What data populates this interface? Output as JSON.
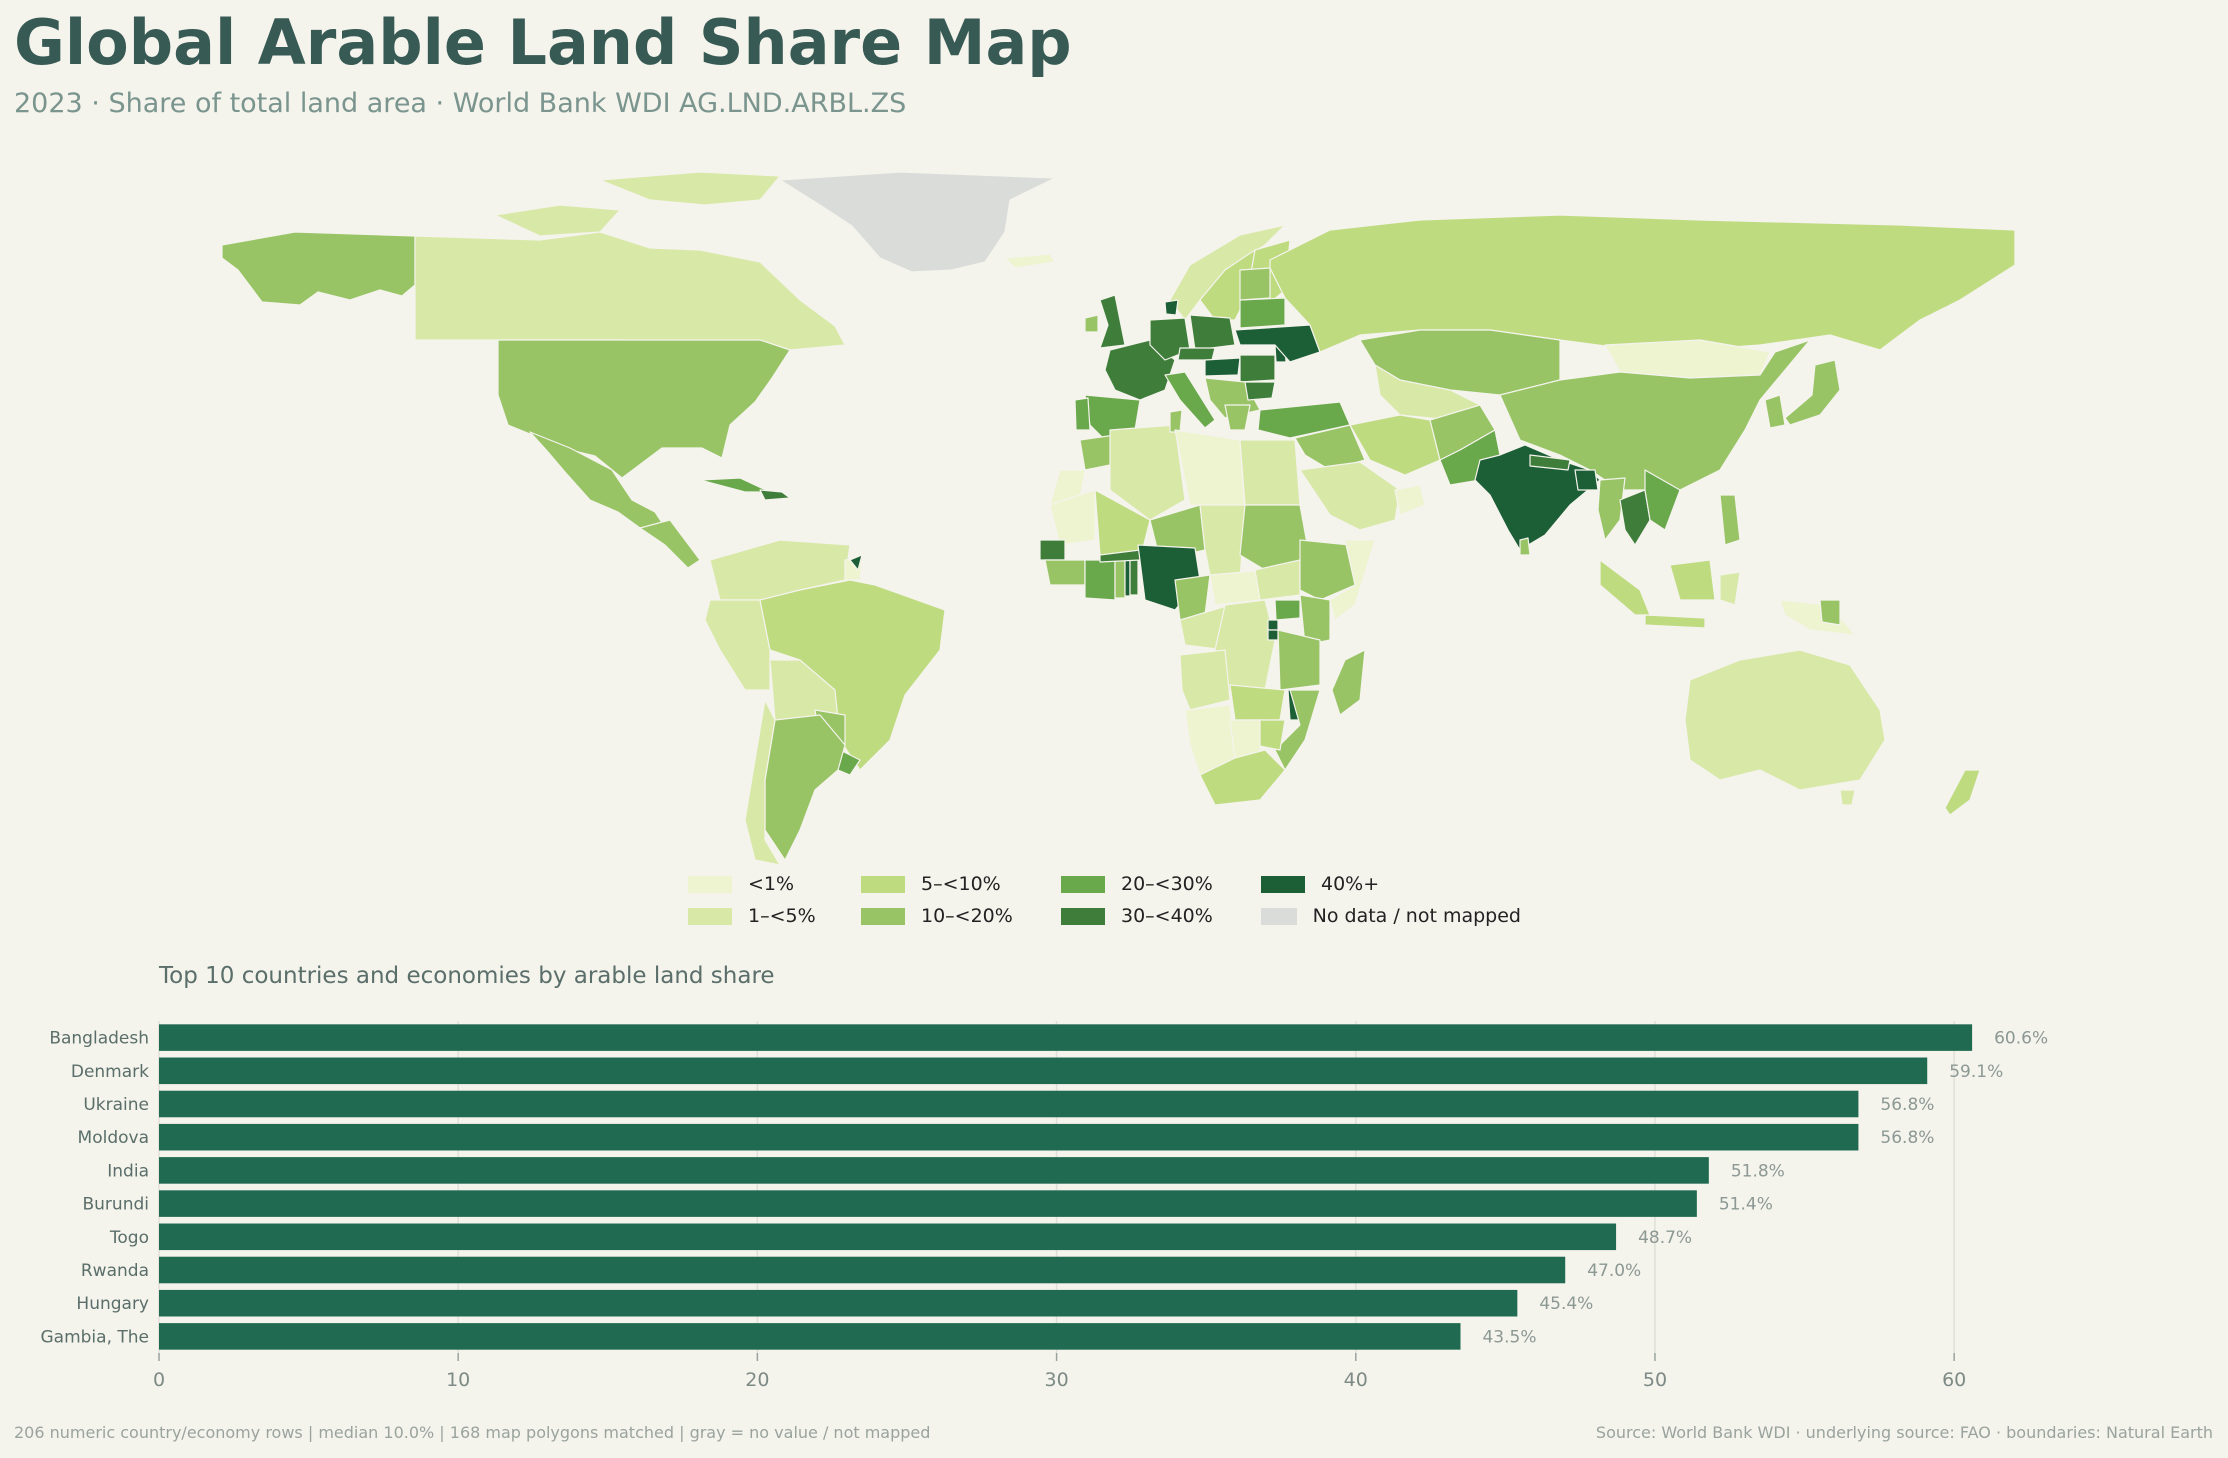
{
  "title": "Global Arable Land Share Map",
  "subtitle": "2023 · Share of total land area · World Bank WDI AG.LND.ARBL.ZS",
  "legend": [
    {
      "label": "<1%",
      "color": "#eef4d0"
    },
    {
      "label": "1–<5%",
      "color": "#d8e8a6"
    },
    {
      "label": "5–<10%",
      "color": "#bfdb80"
    },
    {
      "label": "10–<20%",
      "color": "#98c466"
    },
    {
      "label": "20–<30%",
      "color": "#6aa84c"
    },
    {
      "label": "30–<40%",
      "color": "#3f7e3a"
    },
    {
      "label": "40%+",
      "color": "#1c5e35"
    },
    {
      "label": "No data / not mapped",
      "color": "#d9dcd8"
    }
  ],
  "chart_data": {
    "type": "bar",
    "title": "Top 10 countries and economies by arable land share",
    "orientation": "horizontal",
    "categories": [
      "Bangladesh",
      "Denmark",
      "Ukraine",
      "Moldova",
      "India",
      "Burundi",
      "Togo",
      "Rwanda",
      "Hungary",
      "Gambia, The"
    ],
    "values": [
      60.6,
      59.1,
      56.8,
      56.8,
      51.8,
      51.4,
      48.7,
      47.0,
      45.4,
      43.5
    ],
    "value_labels": [
      "60.6%",
      "59.1%",
      "56.8%",
      "56.8%",
      "51.8%",
      "51.4%",
      "48.7%",
      "47.0%",
      "45.4%",
      "43.5%"
    ],
    "xlim": [
      0,
      62
    ],
    "xticks": [
      0,
      10,
      20,
      30,
      40,
      50,
      60
    ],
    "xlabel": "",
    "ylabel": "",
    "grid": "vertical",
    "bar_color": "#1f6a50"
  },
  "footnote": "206 numeric country/economy rows | median 10.0% | 168 map polygons matched | gray = no value / not mapped",
  "source": "Source: World Bank WDI · underlying source: FAO · boundaries: Natural Earth"
}
